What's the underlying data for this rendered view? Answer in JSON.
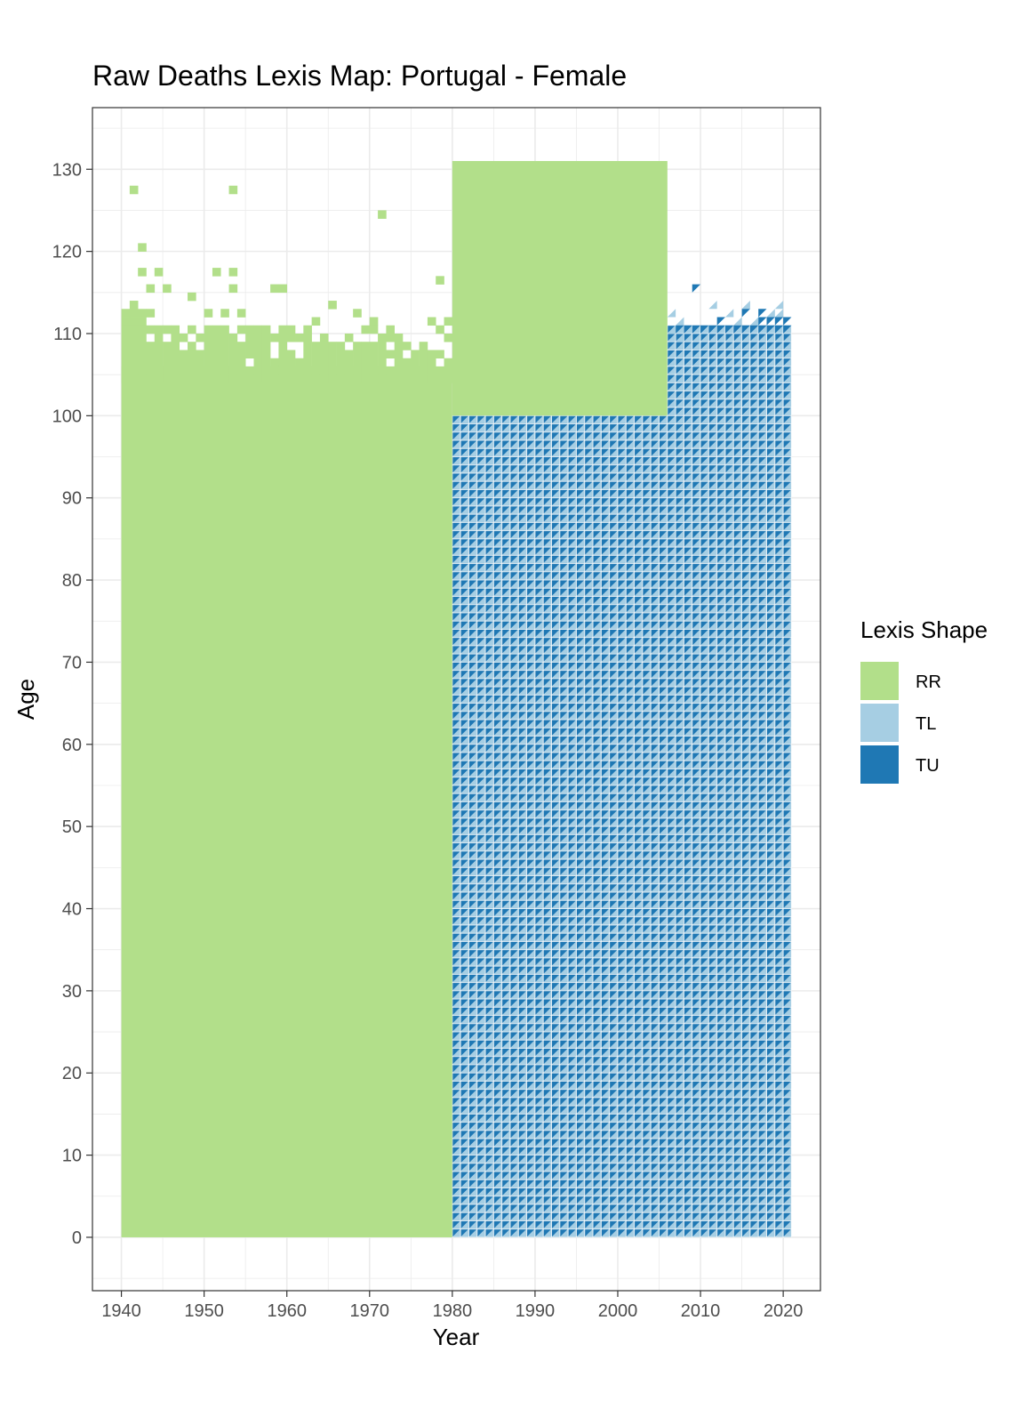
{
  "chart_data": {
    "type": "heatmap",
    "title": "Raw Deaths Lexis Map: Portugal - Female",
    "xlabel": "Year",
    "ylabel": "Age",
    "xlim": [
      1936.5,
      2024.5
    ],
    "ylim": [
      -6.5,
      137.5
    ],
    "x_ticks": [
      1940,
      1950,
      1960,
      1970,
      1980,
      1990,
      2000,
      2010,
      2020
    ],
    "y_ticks": [
      0,
      10,
      20,
      30,
      40,
      50,
      60,
      70,
      80,
      90,
      100,
      110,
      120,
      130
    ],
    "x_tick_labels": [
      "1940",
      "1950",
      "1960",
      "1970",
      "1980",
      "1990",
      "2000",
      "2010",
      "2020"
    ],
    "y_tick_labels": [
      "0",
      "10",
      "20",
      "30",
      "40",
      "50",
      "60",
      "70",
      "80",
      "90",
      "100",
      "110",
      "120",
      "130"
    ],
    "grid": true,
    "legend": {
      "title": "Lexis Shape",
      "position": "right",
      "entries": [
        {
          "key": "RR",
          "label": "RR",
          "color": "#b2df8a"
        },
        {
          "key": "TL",
          "label": "TL",
          "color": "#a6cee3"
        },
        {
          "key": "TU",
          "label": "TU",
          "color": "#1f78b4"
        }
      ]
    },
    "regions": [
      {
        "shape": "RR",
        "x": [
          1940,
          1980
        ],
        "y": [
          0,
          106
        ],
        "description": "one-year age x one-year period cells"
      },
      {
        "shape": "RR",
        "x": [
          1980,
          2006
        ],
        "y": [
          100,
          131
        ],
        "description": "open-ended age group block"
      },
      {
        "shape": "TL/TU",
        "x": [
          1980,
          2021
        ],
        "y": [
          0,
          100
        ],
        "description": "lower/upper Lexis triangles"
      },
      {
        "shape": "TL/TU",
        "x": [
          2006,
          2021
        ],
        "y": [
          100,
          111
        ],
        "description": "lower/upper Lexis triangles"
      }
    ],
    "scattered_rr_cells": [
      [
        1941,
        127
      ],
      [
        1953,
        127
      ],
      [
        1971,
        124
      ],
      [
        1942,
        120
      ],
      [
        1942,
        117
      ],
      [
        1944,
        117
      ],
      [
        1951,
        117
      ],
      [
        1953,
        117
      ],
      [
        1978,
        116
      ],
      [
        1943,
        115
      ],
      [
        1945,
        115
      ],
      [
        1953,
        115
      ],
      [
        1958,
        115
      ],
      [
        1959,
        115
      ],
      [
        1948,
        114
      ],
      [
        1941,
        113
      ],
      [
        1965,
        113
      ],
      [
        1940,
        112
      ],
      [
        1941,
        112
      ],
      [
        1942,
        112
      ],
      [
        1943,
        112
      ],
      [
        1950,
        112
      ],
      [
        1952,
        112
      ],
      [
        1954,
        112
      ],
      [
        1968,
        112
      ],
      [
        1940,
        111
      ],
      [
        1941,
        111
      ],
      [
        1942,
        111
      ],
      [
        1963,
        111
      ],
      [
        1970,
        111
      ],
      [
        1977,
        111
      ],
      [
        1979,
        111
      ],
      [
        1940,
        110
      ],
      [
        1941,
        110
      ],
      [
        1942,
        110
      ],
      [
        1943,
        110
      ],
      [
        1944,
        110
      ],
      [
        1945,
        110
      ],
      [
        1946,
        110
      ],
      [
        1948,
        110
      ],
      [
        1950,
        110
      ],
      [
        1951,
        110
      ],
      [
        1952,
        110
      ],
      [
        1954,
        110
      ],
      [
        1955,
        110
      ],
      [
        1956,
        110
      ],
      [
        1957,
        110
      ],
      [
        1959,
        110
      ],
      [
        1960,
        110
      ],
      [
        1962,
        110
      ],
      [
        1969,
        110
      ],
      [
        1970,
        110
      ],
      [
        1972,
        110
      ],
      [
        1978,
        110
      ],
      [
        1940,
        109
      ],
      [
        1941,
        109
      ],
      [
        1942,
        109
      ],
      [
        1944,
        109
      ],
      [
        1946,
        109
      ],
      [
        1947,
        109
      ],
      [
        1949,
        109
      ],
      [
        1950,
        109
      ],
      [
        1951,
        109
      ],
      [
        1952,
        109
      ],
      [
        1953,
        109
      ],
      [
        1955,
        109
      ],
      [
        1956,
        109
      ],
      [
        1957,
        109
      ],
      [
        1958,
        109
      ],
      [
        1959,
        109
      ],
      [
        1960,
        109
      ],
      [
        1961,
        109
      ],
      [
        1962,
        109
      ],
      [
        1964,
        109
      ],
      [
        1967,
        109
      ],
      [
        1971,
        109
      ],
      [
        1972,
        109
      ],
      [
        1973,
        109
      ],
      [
        1979,
        109
      ],
      [
        1940,
        108
      ],
      [
        1941,
        108
      ],
      [
        1942,
        108
      ],
      [
        1943,
        108
      ],
      [
        1944,
        108
      ],
      [
        1945,
        108
      ],
      [
        1946,
        108
      ],
      [
        1948,
        108
      ],
      [
        1950,
        108
      ],
      [
        1951,
        108
      ],
      [
        1952,
        108
      ],
      [
        1953,
        108
      ],
      [
        1954,
        108
      ],
      [
        1955,
        108
      ],
      [
        1956,
        108
      ],
      [
        1957,
        108
      ],
      [
        1959,
        108
      ],
      [
        1962,
        108
      ],
      [
        1963,
        108
      ],
      [
        1964,
        108
      ],
      [
        1965,
        108
      ],
      [
        1966,
        108
      ],
      [
        1968,
        108
      ],
      [
        1969,
        108
      ],
      [
        1970,
        108
      ],
      [
        1971,
        108
      ],
      [
        1973,
        108
      ],
      [
        1974,
        108
      ],
      [
        1976,
        108
      ],
      [
        1940,
        107
      ],
      [
        1941,
        107
      ],
      [
        1942,
        107
      ],
      [
        1943,
        107
      ],
      [
        1944,
        107
      ],
      [
        1945,
        107
      ],
      [
        1946,
        107
      ],
      [
        1947,
        107
      ],
      [
        1948,
        107
      ],
      [
        1949,
        107
      ],
      [
        1950,
        107
      ],
      [
        1951,
        107
      ],
      [
        1952,
        107
      ],
      [
        1953,
        107
      ],
      [
        1954,
        107
      ],
      [
        1955,
        107
      ],
      [
        1956,
        107
      ],
      [
        1957,
        107
      ],
      [
        1959,
        107
      ],
      [
        1960,
        107
      ],
      [
        1962,
        107
      ],
      [
        1963,
        107
      ],
      [
        1964,
        107
      ],
      [
        1965,
        107
      ],
      [
        1966,
        107
      ],
      [
        1967,
        107
      ],
      [
        1968,
        107
      ],
      [
        1969,
        107
      ],
      [
        1970,
        107
      ],
      [
        1971,
        107
      ],
      [
        1972,
        107
      ],
      [
        1973,
        107
      ],
      [
        1975,
        107
      ],
      [
        1976,
        107
      ],
      [
        1977,
        107
      ],
      [
        1978,
        107
      ],
      [
        1940,
        106
      ],
      [
        1941,
        106
      ],
      [
        1942,
        106
      ],
      [
        1943,
        106
      ],
      [
        1944,
        106
      ],
      [
        1945,
        106
      ],
      [
        1946,
        106
      ],
      [
        1947,
        106
      ],
      [
        1948,
        106
      ],
      [
        1949,
        106
      ],
      [
        1950,
        106
      ],
      [
        1951,
        106
      ],
      [
        1952,
        106
      ],
      [
        1953,
        106
      ],
      [
        1954,
        106
      ],
      [
        1956,
        106
      ],
      [
        1957,
        106
      ],
      [
        1958,
        106
      ],
      [
        1959,
        106
      ],
      [
        1960,
        106
      ],
      [
        1961,
        106
      ],
      [
        1962,
        106
      ],
      [
        1963,
        106
      ],
      [
        1964,
        106
      ],
      [
        1965,
        106
      ],
      [
        1966,
        106
      ],
      [
        1967,
        106
      ],
      [
        1968,
        106
      ],
      [
        1969,
        106
      ],
      [
        1970,
        106
      ],
      [
        1971,
        106
      ],
      [
        1973,
        106
      ],
      [
        1974,
        106
      ],
      [
        1975,
        106
      ],
      [
        1976,
        106
      ],
      [
        1977,
        106
      ],
      [
        1979,
        106
      ],
      [
        1940,
        105
      ],
      [
        1941,
        105
      ],
      [
        1942,
        105
      ],
      [
        1943,
        105
      ],
      [
        1944,
        105
      ],
      [
        1945,
        105
      ],
      [
        1946,
        105
      ],
      [
        1947,
        105
      ],
      [
        1948,
        105
      ],
      [
        1949,
        105
      ],
      [
        1950,
        105
      ],
      [
        1951,
        105
      ],
      [
        1952,
        105
      ],
      [
        1953,
        105
      ],
      [
        1954,
        105
      ],
      [
        1955,
        105
      ],
      [
        1956,
        105
      ],
      [
        1957,
        105
      ],
      [
        1958,
        105
      ],
      [
        1959,
        105
      ],
      [
        1960,
        105
      ],
      [
        1961,
        105
      ],
      [
        1962,
        105
      ],
      [
        1963,
        105
      ],
      [
        1964,
        105
      ],
      [
        1965,
        105
      ],
      [
        1966,
        105
      ],
      [
        1967,
        105
      ],
      [
        1968,
        105
      ],
      [
        1969,
        105
      ],
      [
        1970,
        105
      ],
      [
        1971,
        105
      ],
      [
        1972,
        105
      ],
      [
        1973,
        105
      ],
      [
        1974,
        105
      ],
      [
        1975,
        105
      ],
      [
        1976,
        105
      ],
      [
        1977,
        105
      ],
      [
        1978,
        105
      ],
      [
        1979,
        105
      ],
      [
        1940,
        104
      ],
      [
        1941,
        104
      ],
      [
        1942,
        104
      ],
      [
        1943,
        104
      ],
      [
        1944,
        104
      ],
      [
        1945,
        104
      ],
      [
        1946,
        104
      ],
      [
        1947,
        104
      ],
      [
        1948,
        104
      ],
      [
        1949,
        104
      ],
      [
        1950,
        104
      ],
      [
        1951,
        104
      ],
      [
        1952,
        104
      ],
      [
        1953,
        104
      ],
      [
        1954,
        104
      ],
      [
        1955,
        104
      ],
      [
        1956,
        104
      ],
      [
        1957,
        104
      ],
      [
        1958,
        104
      ],
      [
        1959,
        104
      ],
      [
        1960,
        104
      ],
      [
        1961,
        104
      ],
      [
        1962,
        104
      ],
      [
        1963,
        104
      ],
      [
        1964,
        104
      ],
      [
        1965,
        104
      ],
      [
        1966,
        104
      ],
      [
        1967,
        104
      ],
      [
        1968,
        104
      ],
      [
        1969,
        104
      ],
      [
        1970,
        104
      ],
      [
        1971,
        104
      ],
      [
        1972,
        104
      ],
      [
        1973,
        104
      ],
      [
        1974,
        104
      ],
      [
        1975,
        104
      ],
      [
        1976,
        104
      ],
      [
        1977,
        104
      ],
      [
        1978,
        104
      ],
      [
        1979,
        104
      ]
    ],
    "triangles_top": [
      [
        2006,
        112,
        "TL"
      ],
      [
        2007,
        111,
        "TL"
      ],
      [
        2009,
        115,
        "TU"
      ],
      [
        2011,
        113,
        "TL"
      ],
      [
        2013,
        112,
        "TL"
      ],
      [
        2012,
        111,
        "TU"
      ],
      [
        2015,
        113,
        "TL"
      ],
      [
        2015,
        112,
        "TU"
      ],
      [
        2014,
        111,
        "TL"
      ],
      [
        2016,
        111,
        "TL"
      ],
      [
        2017,
        112,
        "TU"
      ],
      [
        2018,
        112,
        "TL"
      ],
      [
        2019,
        113,
        "TL"
      ],
      [
        2019,
        112,
        "TL"
      ],
      [
        2017,
        111,
        "TU"
      ],
      [
        2018,
        111,
        "TU"
      ],
      [
        2019,
        111,
        "TU"
      ],
      [
        2020,
        111,
        "TU"
      ],
      [
        2020,
        110,
        "TU"
      ],
      [
        2019,
        110,
        "TU"
      ],
      [
        2016,
        110,
        "TU"
      ],
      [
        2017,
        110,
        "TU"
      ],
      [
        2018,
        110,
        "TU"
      ],
      [
        2014,
        110,
        "TU"
      ],
      [
        2015,
        110,
        "TU"
      ],
      [
        2013,
        110,
        "TU"
      ],
      [
        2012,
        110,
        "TU"
      ],
      [
        2011,
        110,
        "TU"
      ],
      [
        2010,
        110,
        "TU"
      ],
      [
        2009,
        110,
        "TU"
      ],
      [
        2008,
        110,
        "TU"
      ],
      [
        2007,
        110,
        "TU"
      ],
      [
        2006,
        110,
        "TL"
      ],
      [
        2007,
        109,
        "TL"
      ]
    ]
  }
}
